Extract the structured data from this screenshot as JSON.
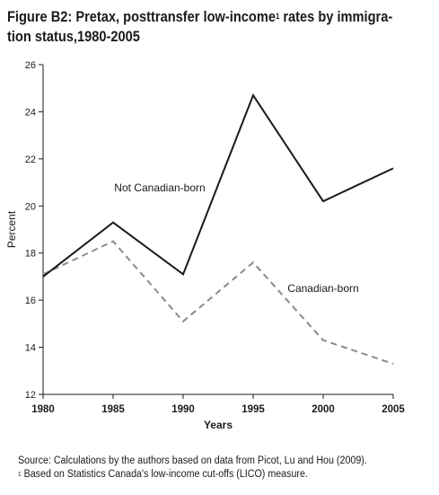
{
  "header": {
    "title_part1": "Figure B2: Pretax, posttransfer low-income",
    "title_sup": "1",
    "title_part2": " rates by immigra-",
    "title_line2": "tion status,1980-2005"
  },
  "chart_data": {
    "type": "line",
    "title": "Figure B2: Pretax, posttransfer low-income rates by immigration status,1980-2005",
    "xlabel": "Years",
    "ylabel": "Percent",
    "x": [
      1980,
      1985,
      1990,
      1995,
      2000,
      2005
    ],
    "xlim": [
      1980,
      2005
    ],
    "ylim": [
      12,
      26
    ],
    "xticks": [
      "1980",
      "1985",
      "1990",
      "1995",
      "2000",
      "2005"
    ],
    "yticks": [
      "12",
      "14",
      "16",
      "18",
      "20",
      "22",
      "24",
      "26"
    ],
    "grid": false,
    "series": [
      {
        "name": "Not Canadian-born",
        "values": [
          17.0,
          19.3,
          17.1,
          24.7,
          20.2,
          21.6
        ],
        "color": "#1a1a1a",
        "style": "solid"
      },
      {
        "name": "Canadian-born",
        "values": [
          17.1,
          18.5,
          15.1,
          17.6,
          14.3,
          13.3
        ],
        "color": "#8a8a8a",
        "style": "dashed"
      }
    ]
  },
  "footnotes": {
    "source": "Source: Calculations by the authors based on data from Picot, Lu and Hou (2009).",
    "note_marker": "1",
    "note_text": " Based on Statistics Canada's low-income cut-offs (LICO) measure."
  }
}
